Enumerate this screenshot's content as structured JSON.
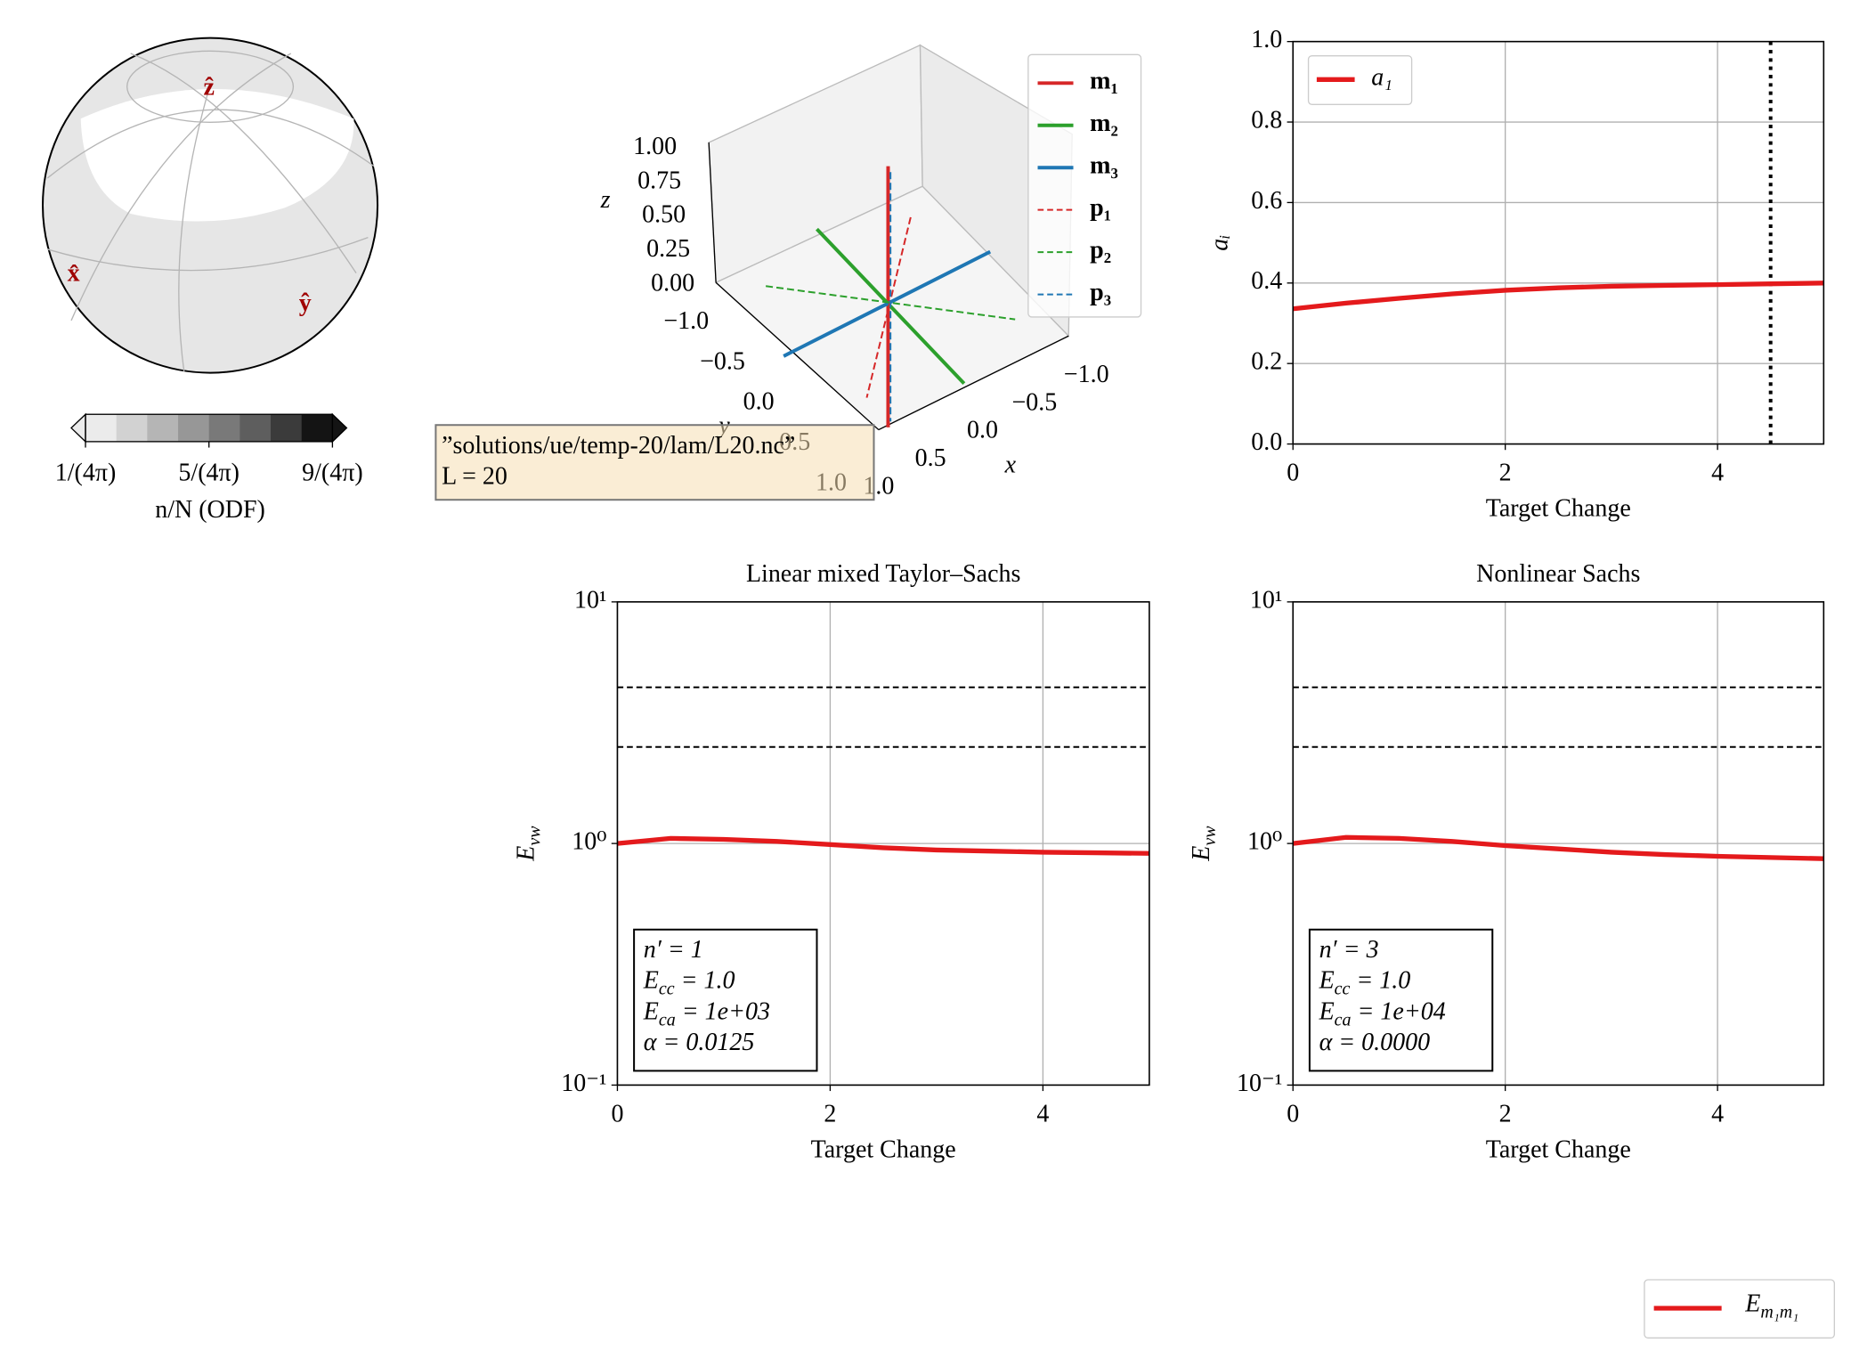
{
  "odf": {
    "axis_labels": [
      "ẑ",
      "x̂",
      "ŷ"
    ],
    "colorbar": {
      "label": "n/N (ODF)",
      "clim": [
        1,
        9
      ],
      "ticks": [
        {
          "value": 1,
          "label": "1/(4π)"
        },
        {
          "value": 5,
          "label": "5/(4π)"
        },
        {
          "value": 9,
          "label": "9/(4π)"
        }
      ],
      "colors": [
        "#ebebeb",
        "#d2d2d2",
        "#b5b5b5",
        "#979797",
        "#797979",
        "#5e5e5e",
        "#3b3b3b",
        "#141414"
      ]
    }
  },
  "axes3d": {
    "zlabel": "z",
    "ylabel": "y",
    "xlabel": "x",
    "zticks": [
      {
        "value": 1,
        "label": "1.00"
      },
      {
        "value": 0.75,
        "label": "0.75"
      },
      {
        "value": 0.5,
        "label": "0.50"
      },
      {
        "value": 0.25,
        "label": "0.25"
      },
      {
        "value": 0,
        "label": "0.00"
      }
    ],
    "yticks": [
      {
        "value": -1,
        "label": "−1.0"
      },
      {
        "value": -0.5,
        "label": "−0.5"
      },
      {
        "value": 0,
        "label": "0.0"
      },
      {
        "value": 0.5,
        "label": "0.5"
      },
      {
        "value": 1,
        "label": "1.0"
      }
    ],
    "xticks": [
      {
        "value": -1,
        "label": "−1.0"
      },
      {
        "value": -0.5,
        "label": "−0.5"
      },
      {
        "value": 0,
        "label": "0.0"
      },
      {
        "value": 0.5,
        "label": "0.5"
      },
      {
        "value": 1,
        "label": "1.0"
      }
    ],
    "legend": [
      {
        "name": "m₁",
        "color": "#d62728",
        "style": "solid"
      },
      {
        "name": "m₂",
        "color": "#2ca02c",
        "style": "solid"
      },
      {
        "name": "m₃",
        "color": "#1f77b4",
        "style": "solid"
      },
      {
        "name": "p₁",
        "color": "#d62728",
        "style": "dashed"
      },
      {
        "name": "p₂",
        "color": "#2ca02c",
        "style": "dashed"
      },
      {
        "name": "p₃",
        "color": "#1f77b4",
        "style": "dashed"
      }
    ]
  },
  "annotation": {
    "lines": [
      "”solutions/ue/temp-20/lam/L20.nc”",
      "L = 20"
    ]
  },
  "chart_data": [
    {
      "type": "line",
      "xlabel": "Target Change",
      "ylabel": "aᵢ",
      "x": [
        0,
        0.5,
        1,
        1.5,
        2,
        2.5,
        3,
        3.5,
        4,
        4.5,
        5
      ],
      "series": [
        {
          "name": "a₁",
          "color": "#e41a1c",
          "values": [
            0.336,
            0.35,
            0.362,
            0.373,
            0.382,
            0.388,
            0.392,
            0.394,
            0.396,
            0.398,
            0.4
          ]
        }
      ],
      "xlim": [
        0,
        5
      ],
      "ylim": [
        0,
        1
      ],
      "xticks": [
        0,
        2,
        4
      ],
      "yticks": [
        {
          "value": 0,
          "label": "0.0"
        },
        0.2,
        0.4,
        0.6,
        0.8,
        {
          "value": 1,
          "label": "1.0"
        }
      ],
      "grid": true,
      "legend": "upper left",
      "vlines": [
        4.5
      ]
    },
    {
      "type": "line",
      "title": "Linear mixed Taylor–Sachs",
      "xlabel": "Target Change",
      "ylabel": [
        "E",
        {
          "sub": "vw"
        }
      ],
      "x": [
        0,
        0.5,
        1,
        1.5,
        2,
        2.5,
        3,
        3.5,
        4,
        4.5,
        5
      ],
      "series": [
        {
          "color": "#e41a1c",
          "values": [
            1.0,
            1.05,
            1.04,
            1.02,
            0.99,
            0.96,
            0.94,
            0.93,
            0.92,
            0.915,
            0.91
          ]
        }
      ],
      "xlim": [
        0,
        5
      ],
      "ylim": [
        0.1,
        10
      ],
      "yscale": "log",
      "xticks": [
        0,
        2,
        4
      ],
      "yticks": [
        {
          "value": 0.1,
          "label": "10⁻¹"
        },
        {
          "value": 1,
          "label": "10⁰"
        },
        {
          "value": 10,
          "label": "10¹"
        }
      ],
      "grid": true,
      "hlines": [
        4.43,
        2.51
      ],
      "text": [
        [
          "n′ = 1"
        ],
        [
          "E",
          {
            "sub": "cc"
          },
          " = 1.0"
        ],
        [
          "E",
          {
            "sub": "ca"
          },
          " = 1e+03"
        ],
        [
          "α = 0.0125"
        ]
      ]
    },
    {
      "type": "line",
      "title": "Nonlinear Sachs",
      "xlabel": "Target Change",
      "ylabel": [
        "E",
        {
          "sub": "vw"
        }
      ],
      "x": [
        0,
        0.5,
        1,
        1.5,
        2,
        2.5,
        3,
        3.5,
        4,
        4.5,
        5
      ],
      "series": [
        {
          "color": "#e41a1c",
          "values": [
            1.0,
            1.06,
            1.05,
            1.02,
            0.98,
            0.95,
            0.92,
            0.9,
            0.885,
            0.875,
            0.865
          ]
        }
      ],
      "xlim": [
        0,
        5
      ],
      "ylim": [
        0.1,
        10
      ],
      "yscale": "log",
      "xticks": [
        0,
        2,
        4
      ],
      "yticks": [
        {
          "value": 0.1,
          "label": "10⁻¹"
        },
        {
          "value": 1,
          "label": "10⁰"
        },
        {
          "value": 10,
          "label": "10¹"
        }
      ],
      "grid": true,
      "hlines": [
        4.43,
        2.51
      ],
      "text": [
        [
          "n′ = 3"
        ],
        [
          "E",
          {
            "sub": "cc"
          },
          " = 1.0"
        ],
        [
          "E",
          {
            "sub": "ca"
          },
          " = 1e+04"
        ],
        [
          "α = 0.0000"
        ]
      ]
    }
  ],
  "figure_legend": {
    "name": [
      "E",
      {
        "sub": "m₁m₁"
      }
    ],
    "color": "#e41a1c"
  }
}
